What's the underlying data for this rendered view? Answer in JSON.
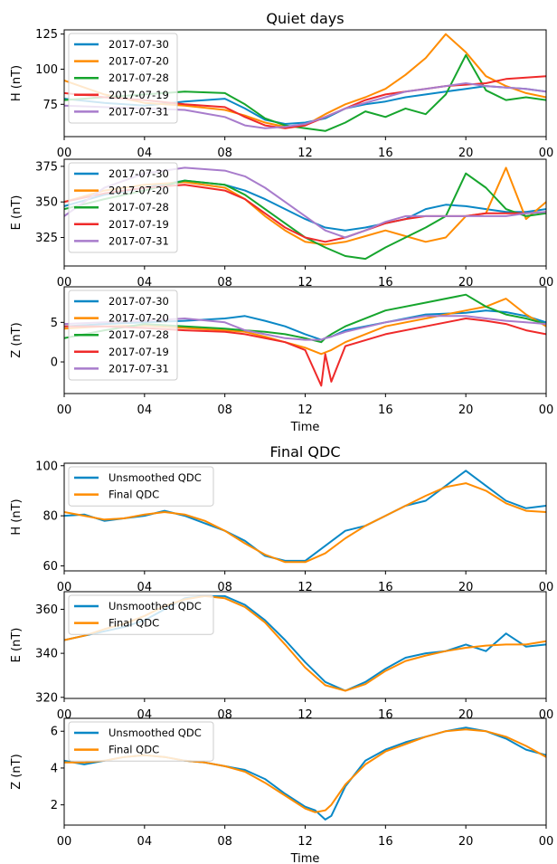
{
  "figure": {
    "section_titles": [
      "Quiet days",
      "Final QDC"
    ],
    "xlabel": "Time",
    "xticks": [
      "00",
      "04",
      "08",
      "12",
      "16",
      "20",
      "00"
    ]
  },
  "colors": {
    "blue": "#0a88c6",
    "orange": "#ff8c00",
    "green": "#16a52d",
    "red": "#ef2a2a",
    "purple": "#a87ccc"
  },
  "chart_data": [
    {
      "type": "line",
      "title": "Quiet days",
      "xlabel": "",
      "ylabel": "H (nT)",
      "xlim": [
        0,
        24
      ],
      "ylim": [
        52,
        128
      ],
      "yticks": [
        75,
        100,
        125
      ],
      "legend": "top-left",
      "x": [
        0,
        2,
        4,
        6,
        8,
        9,
        10,
        11,
        12,
        13,
        14,
        15,
        16,
        17,
        18,
        19,
        20,
        21,
        22,
        23,
        24
      ],
      "series": [
        {
          "name": "2017-07-30",
          "color": "#0a88c6",
          "values": [
            79,
            76,
            74,
            77,
            79,
            72,
            64,
            61,
            62,
            65,
            72,
            75,
            77,
            80,
            82,
            84,
            86,
            88,
            87,
            86,
            84
          ]
        },
        {
          "name": "2017-07-20",
          "color": "#ff8c00",
          "values": [
            92,
            82,
            76,
            74,
            71,
            67,
            62,
            59,
            60,
            68,
            75,
            80,
            86,
            96,
            108,
            125,
            112,
            95,
            88,
            83,
            80
          ]
        },
        {
          "name": "2017-07-28",
          "color": "#16a52d",
          "values": [
            78,
            80,
            82,
            84,
            83,
            75,
            65,
            60,
            58,
            56,
            62,
            70,
            66,
            72,
            68,
            82,
            110,
            85,
            78,
            80,
            78
          ]
        },
        {
          "name": "2017-07-19",
          "color": "#ef2a2a",
          "values": [
            83,
            80,
            78,
            75,
            73,
            66,
            60,
            58,
            60,
            66,
            72,
            78,
            82,
            84,
            86,
            88,
            89,
            90,
            93,
            94,
            95
          ]
        },
        {
          "name": "2017-07-31",
          "color": "#a87ccc",
          "values": [
            74,
            73,
            72,
            71,
            66,
            60,
            58,
            59,
            61,
            66,
            72,
            76,
            80,
            84,
            86,
            88,
            90,
            88,
            87,
            86,
            84
          ]
        }
      ]
    },
    {
      "type": "line",
      "title": "",
      "xlabel": "",
      "ylabel": "E (nT)",
      "xlim": [
        0,
        24
      ],
      "ylim": [
        305,
        380
      ],
      "yticks": [
        325,
        350,
        375
      ],
      "legend": "top-left",
      "x": [
        0,
        2,
        4,
        6,
        8,
        9,
        10,
        11,
        12,
        13,
        14,
        15,
        16,
        17,
        18,
        19,
        20,
        21,
        22,
        23,
        24
      ],
      "series": [
        {
          "name": "2017-07-30",
          "color": "#0a88c6",
          "values": [
            347,
            355,
            360,
            365,
            362,
            358,
            352,
            345,
            338,
            332,
            330,
            332,
            335,
            338,
            345,
            348,
            347,
            345,
            343,
            343,
            345
          ]
        },
        {
          "name": "2017-07-20",
          "color": "#ff8c00",
          "values": [
            350,
            358,
            362,
            364,
            360,
            352,
            340,
            330,
            322,
            320,
            322,
            326,
            330,
            326,
            322,
            325,
            340,
            342,
            374,
            338,
            350
          ]
        },
        {
          "name": "2017-07-28",
          "color": "#16a52d",
          "values": [
            345,
            352,
            358,
            365,
            362,
            355,
            345,
            335,
            325,
            318,
            312,
            310,
            318,
            325,
            332,
            340,
            370,
            360,
            345,
            340,
            342
          ]
        },
        {
          "name": "2017-07-19",
          "color": "#ef2a2a",
          "values": [
            350,
            356,
            360,
            362,
            358,
            352,
            342,
            332,
            325,
            322,
            325,
            330,
            335,
            338,
            340,
            340,
            340,
            342,
            342,
            342,
            343
          ]
        },
        {
          "name": "2017-07-31",
          "color": "#a87ccc",
          "values": [
            340,
            360,
            370,
            374,
            372,
            368,
            360,
            350,
            340,
            330,
            325,
            330,
            336,
            340,
            340,
            340,
            340,
            340,
            340,
            342,
            343
          ]
        }
      ]
    },
    {
      "type": "line",
      "title": "",
      "xlabel": "Time",
      "ylabel": "Z (nT)",
      "xlim": [
        0,
        24
      ],
      "ylim": [
        -4,
        9.5
      ],
      "yticks": [
        0,
        5
      ],
      "legend": "top-left",
      "x": [
        0,
        2,
        4,
        6,
        8,
        9,
        10,
        11,
        12,
        12.8,
        13,
        13.3,
        14,
        16,
        18,
        20,
        21,
        22,
        23,
        24
      ],
      "series": [
        {
          "name": "2017-07-30",
          "color": "#0a88c6",
          "values": [
            4.5,
            4.8,
            5.0,
            5.2,
            5.5,
            5.8,
            5.2,
            4.5,
            3.5,
            2.8,
            3.0,
            3.2,
            4.0,
            5.0,
            6.0,
            6.2,
            6.5,
            6.3,
            5.8,
            5.0
          ]
        },
        {
          "name": "2017-07-20",
          "color": "#ff8c00",
          "values": [
            4.2,
            4.5,
            4.6,
            4.3,
            4.0,
            3.8,
            3.2,
            2.5,
            1.8,
            1.0,
            1.2,
            1.5,
            2.5,
            4.5,
            5.5,
            6.5,
            7.0,
            8.0,
            6.0,
            4.5
          ]
        },
        {
          "name": "2017-07-28",
          "color": "#16a52d",
          "values": [
            3.0,
            4.0,
            4.8,
            4.5,
            4.2,
            4.0,
            3.8,
            3.5,
            3.0,
            2.5,
            3.0,
            3.5,
            4.5,
            6.5,
            7.5,
            8.5,
            7.0,
            6.0,
            5.5,
            4.8
          ]
        },
        {
          "name": "2017-07-19",
          "color": "#ef2a2a",
          "values": [
            4.5,
            4.5,
            4.3,
            4.0,
            3.8,
            3.5,
            3.0,
            2.5,
            1.5,
            -3.0,
            1.0,
            -2.5,
            2.0,
            3.5,
            4.5,
            5.5,
            5.2,
            4.8,
            4.0,
            3.5
          ]
        },
        {
          "name": "2017-07-31",
          "color": "#a87ccc",
          "values": [
            4.8,
            5.0,
            5.2,
            5.5,
            5.0,
            4.0,
            3.5,
            3.0,
            2.8,
            2.8,
            3.0,
            3.2,
            3.8,
            5.0,
            5.8,
            5.8,
            5.5,
            5.2,
            5.0,
            4.8
          ]
        }
      ]
    },
    {
      "type": "line",
      "title": "Final QDC",
      "xlabel": "",
      "ylabel": "H (nT)",
      "xlim": [
        0,
        24
      ],
      "ylim": [
        58,
        101
      ],
      "yticks": [
        60,
        80,
        100
      ],
      "legend": "top-left",
      "x": [
        0,
        1,
        2,
        3,
        4,
        5,
        6,
        7,
        8,
        9,
        10,
        11,
        12,
        13,
        14,
        15,
        16,
        17,
        18,
        19,
        20,
        21,
        22,
        23,
        24
      ],
      "series": [
        {
          "name": "Unsmoothed QDC",
          "color": "#0a88c6",
          "values": [
            80,
            80.5,
            78,
            79,
            80,
            82,
            80,
            77,
            74,
            70,
            64,
            62,
            62,
            68,
            74,
            76,
            80,
            84,
            86,
            92,
            98,
            92,
            86,
            83,
            84
          ]
        },
        {
          "name": "Final QDC",
          "color": "#ff8c00",
          "values": [
            81.5,
            80,
            78.5,
            79,
            80.5,
            81.5,
            80.5,
            78,
            74,
            69,
            64.5,
            61.5,
            61.5,
            65,
            71,
            76,
            80,
            84,
            88,
            91.5,
            93,
            90,
            85,
            82,
            81.5
          ]
        }
      ]
    },
    {
      "type": "line",
      "title": "",
      "xlabel": "",
      "ylabel": "E (nT)",
      "xlim": [
        0,
        24
      ],
      "ylim": [
        319.5,
        368
      ],
      "yticks": [
        320,
        340,
        360
      ],
      "legend": "top-left",
      "x": [
        0,
        1,
        2,
        3,
        4,
        5,
        6,
        7,
        8,
        9,
        10,
        11,
        12,
        13,
        14,
        15,
        16,
        17,
        18,
        19,
        20,
        21,
        22,
        23,
        24
      ],
      "series": [
        {
          "name": "Unsmoothed QDC",
          "color": "#0a88c6",
          "values": [
            346,
            348,
            350,
            352,
            355,
            360,
            365,
            366,
            366,
            362,
            355,
            346,
            336,
            327,
            323,
            327,
            333,
            338,
            340,
            341,
            344,
            341,
            349,
            343,
            344
          ]
        },
        {
          "name": "Final QDC",
          "color": "#ff8c00",
          "values": [
            346,
            348,
            351,
            353.5,
            357,
            361.5,
            364.5,
            366,
            365,
            361,
            354,
            344,
            333.5,
            325.5,
            323,
            326,
            332,
            336.5,
            339,
            341,
            342.5,
            343.5,
            344,
            344,
            345.5
          ]
        }
      ]
    },
    {
      "type": "line",
      "title": "",
      "xlabel": "Time",
      "ylabel": "Z (nT)",
      "xlim": [
        0,
        24
      ],
      "ylim": [
        0.9,
        6.7
      ],
      "yticks": [
        2,
        4,
        6
      ],
      "legend": "top-left",
      "x": [
        0,
        1,
        2,
        3,
        4,
        5,
        6,
        7,
        8,
        9,
        10,
        11,
        12,
        12.5,
        13,
        13.3,
        14,
        15,
        16,
        17,
        18,
        19,
        20,
        21,
        22,
        23,
        24
      ],
      "series": [
        {
          "name": "Unsmoothed QDC",
          "color": "#0a88c6",
          "values": [
            4.4,
            4.2,
            4.4,
            4.6,
            4.7,
            4.6,
            4.4,
            4.3,
            4.1,
            3.9,
            3.4,
            2.6,
            1.9,
            1.7,
            1.2,
            1.4,
            3.0,
            4.4,
            5.0,
            5.4,
            5.7,
            6.0,
            6.2,
            6.0,
            5.6,
            5.0,
            4.7
          ]
        },
        {
          "name": "Final QDC",
          "color": "#ff8c00",
          "values": [
            4.3,
            4.3,
            4.4,
            4.6,
            4.7,
            4.6,
            4.4,
            4.3,
            4.1,
            3.8,
            3.2,
            2.5,
            1.8,
            1.6,
            1.7,
            2.0,
            3.1,
            4.2,
            4.9,
            5.3,
            5.7,
            6.0,
            6.1,
            6.0,
            5.7,
            5.2,
            4.6
          ]
        }
      ]
    }
  ]
}
